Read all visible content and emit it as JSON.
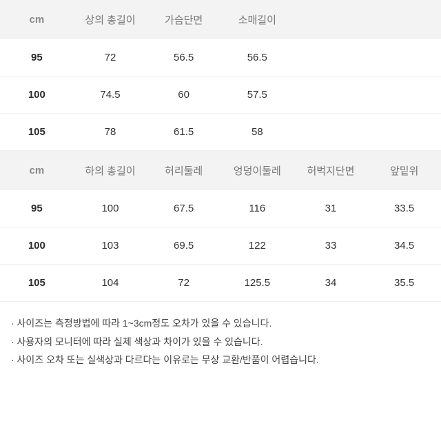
{
  "table1": {
    "header_unit": "cm",
    "columns": [
      "상의 총길이",
      "가슴단면",
      "소매길이"
    ],
    "rows": [
      {
        "size": "95",
        "values": [
          "72",
          "56.5",
          "56.5"
        ]
      },
      {
        "size": "100",
        "values": [
          "74.5",
          "60",
          "57.5"
        ]
      },
      {
        "size": "105",
        "values": [
          "78",
          "61.5",
          "58"
        ]
      }
    ],
    "num_cols": 6,
    "filled_cols": 4
  },
  "table2": {
    "header_unit": "cm",
    "columns": [
      "하의 총길이",
      "허리둘레",
      "엉덩이둘레",
      "허벅지단면",
      "앞밑위"
    ],
    "rows": [
      {
        "size": "95",
        "values": [
          "100",
          "67.5",
          "116",
          "31",
          "33.5"
        ]
      },
      {
        "size": "100",
        "values": [
          "103",
          "69.5",
          "122",
          "33",
          "34.5"
        ]
      },
      {
        "size": "105",
        "values": [
          "104",
          "72",
          "125.5",
          "34",
          "35.5"
        ]
      }
    ],
    "num_cols": 6,
    "filled_cols": 6
  },
  "notes": [
    "· 사이즈는 측정방법에 따라 1~3cm정도 오차가 있을 수 있습니다.",
    "· 사용자의 모니터에 따라 실제 색상과 차이가 있을 수 있습니다.",
    "· 사이즈 오차 또는 실색상과 다르다는 이유로는 무상 교환/반품이 어렵습니다."
  ],
  "style": {
    "header_bg": "#f3f3f3",
    "header_color": "#777777",
    "row_border": "#eeeeee",
    "body_text": "#333333",
    "size_text": "#2b2b2b",
    "note_text": "#444444",
    "background": "#ffffff",
    "header_fontsize": 15,
    "cell_fontsize": 15,
    "note_fontsize": 14
  }
}
